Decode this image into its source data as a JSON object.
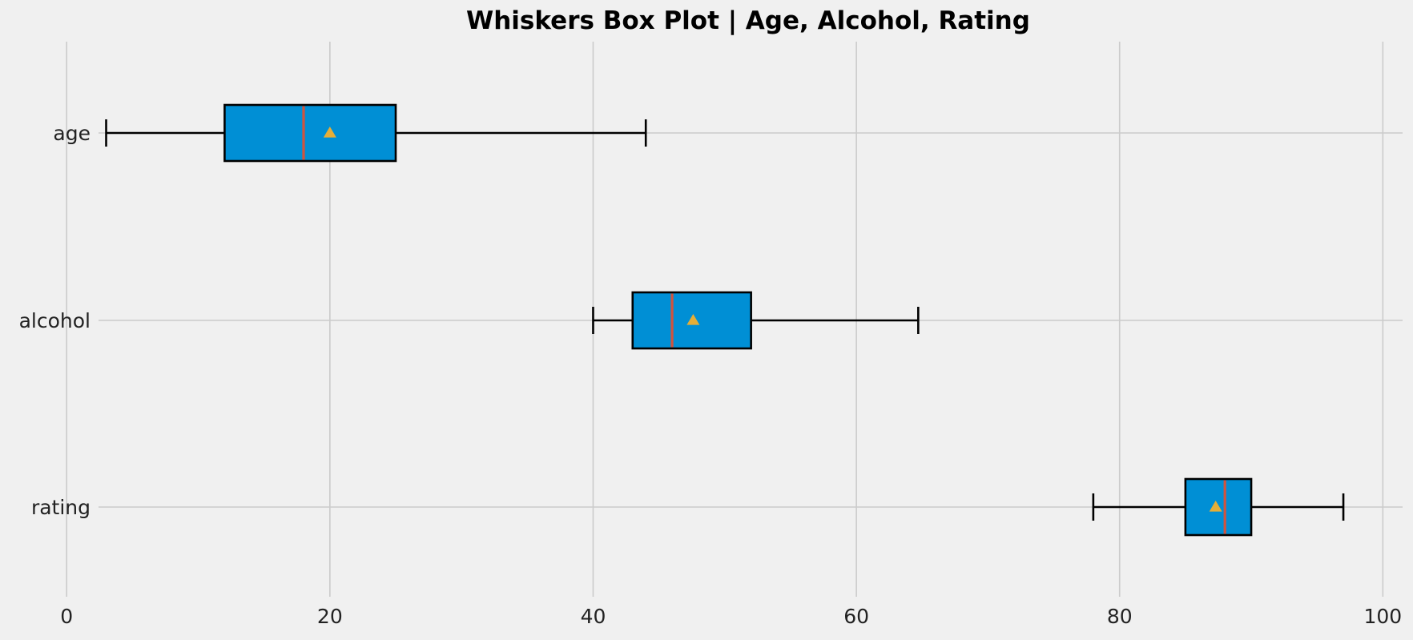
{
  "chart_data": {
    "type": "box",
    "orientation": "horizontal",
    "title": "Whiskers Box Plot | Age, Alcohol, Rating",
    "xlabel": "",
    "ylabel": "",
    "xlim": [
      -0.5,
      101.5
    ],
    "x_ticks": [
      0,
      20,
      40,
      60,
      80,
      100
    ],
    "x_tick_labels": [
      "0",
      "20",
      "40",
      "60",
      "80",
      "100"
    ],
    "grid": true,
    "categories": [
      "age",
      "alcohol",
      "rating"
    ],
    "series": [
      {
        "category": "age",
        "whisker_low": 3,
        "q1": 12,
        "median": 18,
        "mean": 20,
        "q3": 25,
        "whisker_high": 44
      },
      {
        "category": "alcohol",
        "whisker_low": 40,
        "q1": 43,
        "median": 46,
        "mean": 47.6,
        "q3": 52,
        "whisker_high": 64.7
      },
      {
        "category": "rating",
        "whisker_low": 78,
        "q1": 85,
        "median": 88,
        "mean": 87.3,
        "q3": 90,
        "whisker_high": 97
      }
    ],
    "colors": {
      "box_fill": "#008fd5",
      "box_edge": "#000000",
      "median": "#d1533e",
      "mean_marker": "#e5ae38",
      "grid": "#cbcbcb",
      "background": "#f0f0f0"
    }
  }
}
